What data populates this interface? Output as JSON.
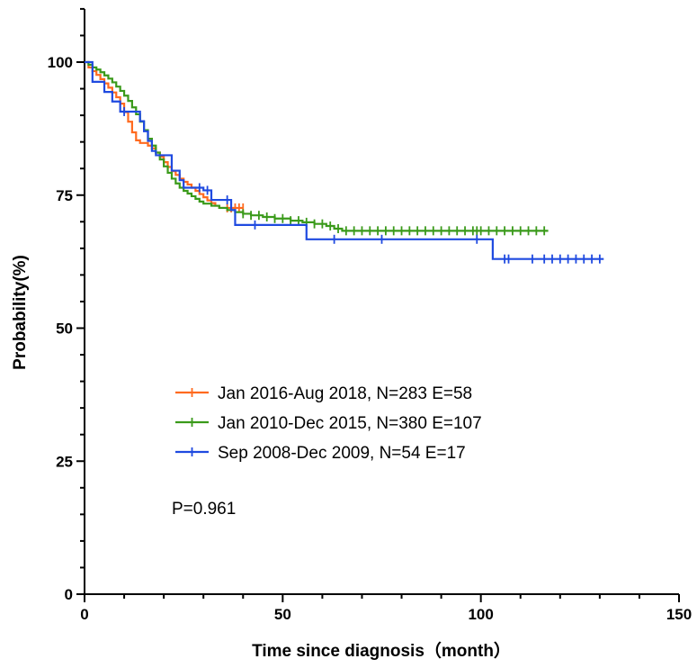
{
  "chart_data": {
    "type": "line",
    "subtype": "kaplan-meier",
    "xlabel": "Time since diagnosis（month）",
    "ylabel": "Probability(%)",
    "xlim": [
      0,
      150
    ],
    "ylim": [
      0,
      100
    ],
    "x_ticks": [
      0,
      50,
      100,
      150
    ],
    "y_ticks": [
      0,
      25,
      50,
      75,
      100
    ],
    "grid": false,
    "legend_position": "center",
    "annotation": "P=0.961",
    "series": [
      {
        "name": "Jan 2016-Aug 2018, N=283 E=58",
        "color": "#ff6a1f",
        "steps": [
          [
            0,
            100
          ],
          [
            1,
            99
          ],
          [
            2,
            98.3
          ],
          [
            3,
            97.6
          ],
          [
            4,
            96.8
          ],
          [
            5,
            96
          ],
          [
            6,
            95.2
          ],
          [
            7,
            94.3
          ],
          [
            8,
            93.4
          ],
          [
            9,
            92.2
          ],
          [
            10,
            90.6
          ],
          [
            11,
            88.8
          ],
          [
            12,
            86.8
          ],
          [
            13,
            85.3
          ],
          [
            14,
            84.8
          ],
          [
            16,
            84.3
          ],
          [
            17,
            83.8
          ],
          [
            18,
            83
          ],
          [
            19,
            82.2
          ],
          [
            20,
            81.2
          ],
          [
            21,
            80.3
          ],
          [
            22,
            79.5
          ],
          [
            23,
            78.8
          ],
          [
            24,
            78.1
          ],
          [
            25,
            77.5
          ],
          [
            26,
            77
          ],
          [
            27,
            76.4
          ],
          [
            28,
            75.8
          ],
          [
            29,
            75.2
          ],
          [
            30,
            74.6
          ],
          [
            31,
            74
          ],
          [
            32,
            73.5
          ],
          [
            33,
            73
          ],
          [
            34,
            72.6
          ],
          [
            35,
            72.6
          ],
          [
            40,
            72.6
          ]
        ],
        "censor_x": [
          36,
          37,
          38,
          39,
          40
        ]
      },
      {
        "name": "Jan 2010-Dec 2015, N=380 E=107",
        "color": "#3a9a1a",
        "steps": [
          [
            0,
            100
          ],
          [
            1,
            99.5
          ],
          [
            2,
            99
          ],
          [
            3,
            98.6
          ],
          [
            4,
            98.1
          ],
          [
            5,
            97.5
          ],
          [
            6,
            96.9
          ],
          [
            7,
            96.2
          ],
          [
            8,
            95.4
          ],
          [
            9,
            94.6
          ],
          [
            10,
            93.7
          ],
          [
            11,
            92.7
          ],
          [
            12,
            91.5
          ],
          [
            13,
            90.2
          ],
          [
            14,
            88.8
          ],
          [
            15,
            87.2
          ],
          [
            16,
            85.6
          ],
          [
            17,
            84.3
          ],
          [
            18,
            83
          ],
          [
            19,
            81.7
          ],
          [
            20,
            80.4
          ],
          [
            21,
            79.2
          ],
          [
            22,
            78.1
          ],
          [
            23,
            77.2
          ],
          [
            24,
            76.4
          ],
          [
            25,
            75.8
          ],
          [
            26,
            75.3
          ],
          [
            27,
            74.8
          ],
          [
            28,
            74.3
          ],
          [
            29,
            73.8
          ],
          [
            30,
            73.4
          ],
          [
            32,
            73
          ],
          [
            34,
            72.6
          ],
          [
            36,
            72.2
          ],
          [
            38,
            71.8
          ],
          [
            40,
            71.5
          ],
          [
            42,
            71.2
          ],
          [
            45,
            70.9
          ],
          [
            48,
            70.6
          ],
          [
            52,
            70.2
          ],
          [
            55,
            69.9
          ],
          [
            58,
            69.6
          ],
          [
            61,
            69.2
          ],
          [
            63,
            68.7
          ],
          [
            65,
            68.3
          ],
          [
            117,
            68.3
          ]
        ],
        "censor_x": [
          40,
          42,
          44,
          46,
          48,
          50,
          52,
          54,
          56,
          58,
          60,
          62,
          64,
          66,
          68,
          70,
          72,
          74,
          76,
          78,
          80,
          82,
          84,
          86,
          88,
          90,
          92,
          94,
          96,
          98,
          99,
          100,
          102,
          104,
          106,
          108,
          110,
          112,
          114,
          116
        ]
      },
      {
        "name": "Sep 2008-Dec 2009, N=54 E=17",
        "color": "#1f4ae0",
        "steps": [
          [
            0,
            100
          ],
          [
            2,
            96.3
          ],
          [
            5,
            94.4
          ],
          [
            7,
            92.6
          ],
          [
            9,
            90.7
          ],
          [
            13,
            90.7
          ],
          [
            14,
            88.9
          ],
          [
            15,
            87
          ],
          [
            16,
            85.2
          ],
          [
            17,
            83.3
          ],
          [
            18,
            82.5
          ],
          [
            22,
            79.6
          ],
          [
            24,
            77.8
          ],
          [
            25,
            76.4
          ],
          [
            30,
            75.9
          ],
          [
            32,
            74.1
          ],
          [
            37,
            72.2
          ],
          [
            38,
            69.4
          ],
          [
            56,
            66.7
          ],
          [
            103,
            63.0
          ],
          [
            131,
            63.0
          ]
        ],
        "censor_x": [
          10,
          29,
          31,
          36,
          43,
          63,
          75,
          99,
          106,
          107,
          113,
          116,
          118,
          120,
          122,
          124,
          126,
          128,
          130
        ]
      }
    ]
  }
}
